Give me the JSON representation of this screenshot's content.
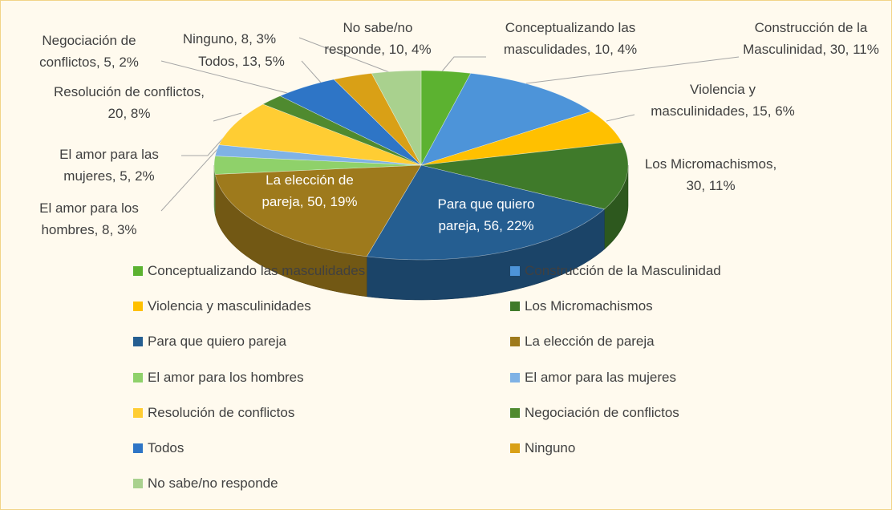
{
  "chart_data": {
    "type": "pie",
    "categories": [
      "Conceptualizando las masculidades",
      "Construcción de la Masculinidad",
      "Violencia y masculinidades",
      "Los Micromachismos",
      "Para que quiero pareja",
      "La elección de pareja",
      "El amor para los hombres",
      "El amor para las mujeres",
      "Resolución de conflictos",
      "Negociación de conflictos",
      "Todos",
      "Ninguno",
      "No sabe/no responde"
    ],
    "values": [
      10,
      30,
      15,
      30,
      56,
      50,
      8,
      5,
      20,
      5,
      13,
      8,
      10
    ],
    "value_labels": [
      "Conceptualizando las masculidades, 10, 4%",
      "Construcción de la Masculinidad, 30, 11%",
      "Violencia y masculinidades, 15, 6%",
      "Los Micromachismos, 30, 11%",
      "Para que quiero pareja, 56, 22%",
      "La elección de pareja, 50, 19%",
      "El amor para los hombres, 8, 3%",
      "El amor para las mujeres, 5, 2%",
      "Resolución de conflictos, 20, 8%",
      "Negociación de conflictos, 5, 2%",
      "Todos, 13, 5%",
      "Ninguno, 8, 3%",
      "No sabe/no responde, 10, 4%"
    ],
    "colors": [
      "#5cb230",
      "#4d94d9",
      "#ffc000",
      "#3f7a2a",
      "#255e91",
      "#9e7a1c",
      "#8fd16a",
      "#7fb2e5",
      "#ffcd33",
      "#4f8a2f",
      "#2e75c6",
      "#d9a016",
      "#a9d18e"
    ],
    "legend": "bottom"
  }
}
